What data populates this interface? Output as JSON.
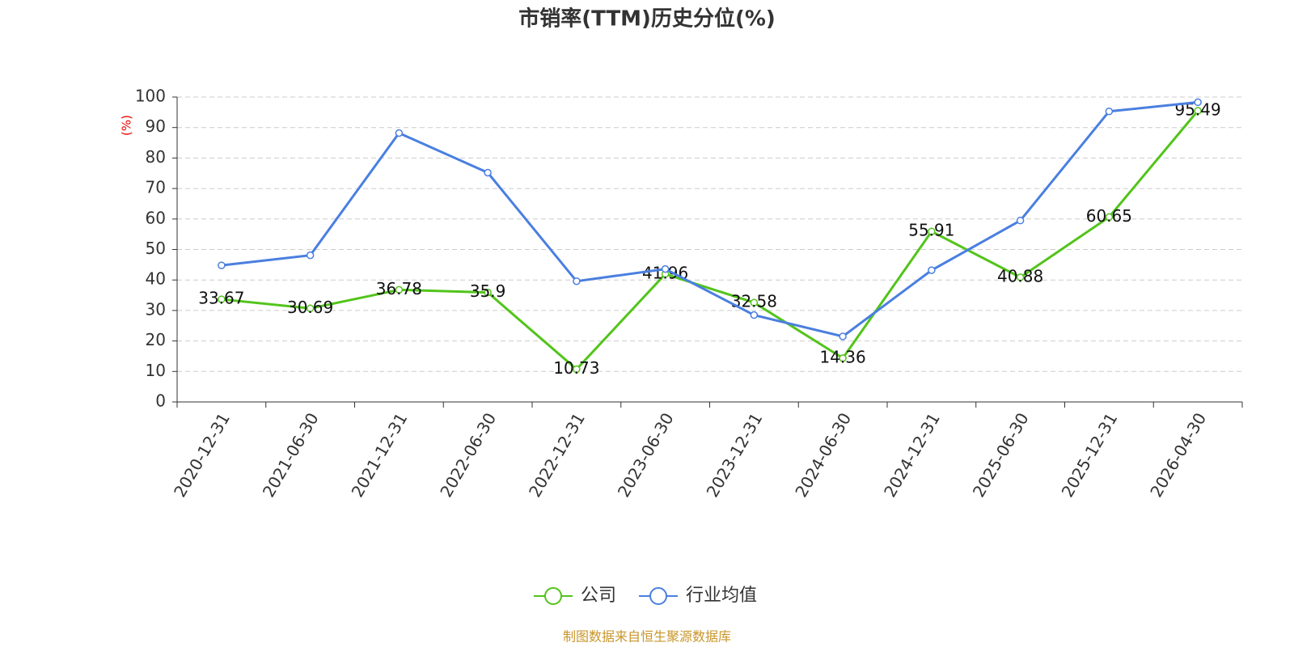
{
  "chart_data": {
    "type": "line",
    "title": "市销率(TTM)历史分位(%)",
    "y_label": "(%)",
    "categories": [
      "2020-12-31",
      "2021-06-30",
      "2021-12-31",
      "2022-06-30",
      "2022-12-31",
      "2023-06-30",
      "2023-12-31",
      "2024-06-30",
      "2024-12-31",
      "2025-06-30",
      "2025-12-31",
      "2026-04-30"
    ],
    "series": [
      {
        "name": "公司",
        "color": "#52c41a",
        "show_labels": true,
        "values": [
          33.67,
          30.69,
          36.78,
          35.9,
          10.73,
          41.96,
          32.58,
          14.36,
          55.91,
          40.88,
          60.65,
          95.49
        ]
      },
      {
        "name": "行业均值",
        "color": "#4a7fe0",
        "show_labels": false,
        "values": [
          44.8,
          48.1,
          88.2,
          75.2,
          39.6,
          43.6,
          28.5,
          21.5,
          43.2,
          59.5,
          95.3,
          98.3
        ]
      }
    ],
    "ylim": [
      0,
      100
    ],
    "yticks": [
      0,
      10,
      20,
      30,
      40,
      50,
      60,
      70,
      80,
      90,
      100
    ],
    "grid": true,
    "legend": "bottom",
    "source": "制图数据来自恒生聚源数据库"
  }
}
